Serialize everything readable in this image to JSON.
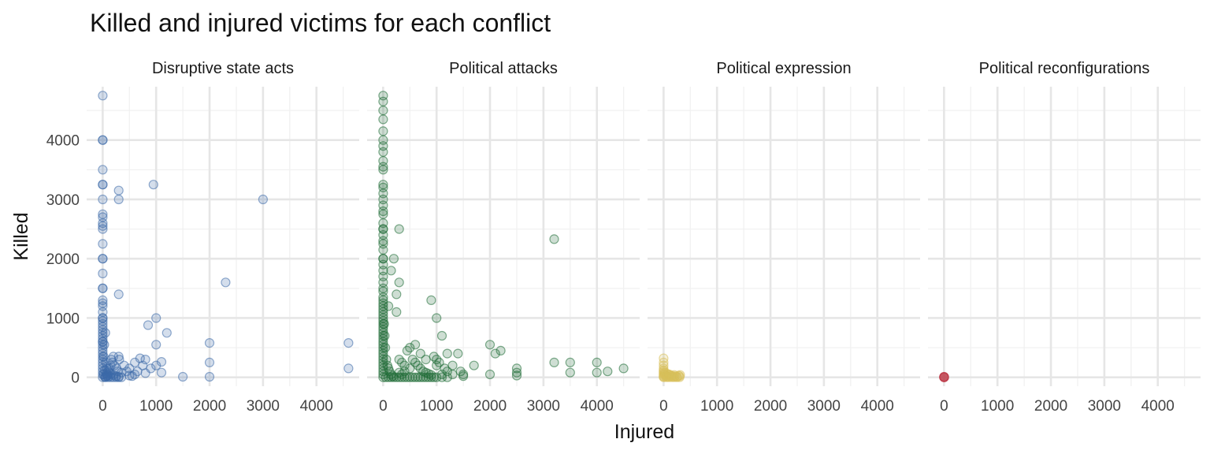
{
  "chart_data": {
    "type": "scatter",
    "title": "Killed and injured victims for each conflict",
    "xlabel": "Injured",
    "ylabel": "Killed",
    "xlim": [
      -300,
      4800
    ],
    "ylim": [
      -150,
      4900
    ],
    "x_ticks": [
      0,
      1000,
      2000,
      3000,
      4000
    ],
    "y_ticks": [
      0,
      1000,
      2000,
      3000,
      4000
    ],
    "grid": true,
    "legend": "none",
    "series": [
      {
        "name": "Disruptive state acts",
        "color": "#3d6aa8",
        "points": [
          [
            0,
            4750
          ],
          [
            0,
            4000
          ],
          [
            0,
            4000
          ],
          [
            0,
            3500
          ],
          [
            0,
            3250
          ],
          [
            0,
            3250
          ],
          [
            0,
            3000
          ],
          [
            0,
            2750
          ],
          [
            0,
            2700
          ],
          [
            0,
            2600
          ],
          [
            0,
            2550
          ],
          [
            0,
            2500
          ],
          [
            0,
            2250
          ],
          [
            0,
            2000
          ],
          [
            0,
            2000
          ],
          [
            0,
            1750
          ],
          [
            0,
            1500
          ],
          [
            0,
            1500
          ],
          [
            0,
            1300
          ],
          [
            0,
            1250
          ],
          [
            0,
            1200
          ],
          [
            0,
            1100
          ],
          [
            0,
            1000
          ],
          [
            0,
            1000
          ],
          [
            0,
            950
          ],
          [
            0,
            900
          ],
          [
            0,
            850
          ],
          [
            0,
            800
          ],
          [
            0,
            750
          ],
          [
            0,
            700
          ],
          [
            0,
            650
          ],
          [
            0,
            600
          ],
          [
            0,
            600
          ],
          [
            0,
            550
          ],
          [
            0,
            500
          ],
          [
            0,
            450
          ],
          [
            0,
            400
          ],
          [
            0,
            350
          ],
          [
            0,
            300
          ],
          [
            0,
            250
          ],
          [
            0,
            200
          ],
          [
            0,
            150
          ],
          [
            0,
            100
          ],
          [
            0,
            50
          ],
          [
            0,
            0
          ],
          [
            50,
            750
          ],
          [
            30,
            550
          ],
          [
            20,
            350
          ],
          [
            60,
            250
          ],
          [
            80,
            150
          ],
          [
            100,
            100
          ],
          [
            120,
            80
          ],
          [
            150,
            60
          ],
          [
            200,
            40
          ],
          [
            250,
            20
          ],
          [
            300,
            10
          ],
          [
            350,
            0
          ],
          [
            50,
            0
          ],
          [
            100,
            0
          ],
          [
            150,
            0
          ],
          [
            200,
            0
          ],
          [
            250,
            0
          ],
          [
            300,
            0
          ],
          [
            20,
            50
          ],
          [
            40,
            120
          ],
          [
            70,
            60
          ],
          [
            90,
            30
          ],
          [
            130,
            20
          ],
          [
            160,
            300
          ],
          [
            180,
            250
          ],
          [
            220,
            200
          ],
          [
            260,
            150
          ],
          [
            280,
            100
          ],
          [
            300,
            350
          ],
          [
            310,
            300
          ],
          [
            200,
            350
          ],
          [
            150,
            200
          ],
          [
            120,
            150
          ],
          [
            100,
            50
          ],
          [
            80,
            20
          ],
          [
            60,
            10
          ],
          [
            40,
            5
          ],
          [
            300,
            3150
          ],
          [
            300,
            3000
          ],
          [
            300,
            1400
          ],
          [
            950,
            3250
          ],
          [
            3000,
            3000
          ],
          [
            2300,
            1600
          ],
          [
            850,
            880
          ],
          [
            1000,
            1000
          ],
          [
            1200,
            750
          ],
          [
            1000,
            550
          ],
          [
            2000,
            580
          ],
          [
            4600,
            580
          ],
          [
            4600,
            150
          ],
          [
            2000,
            250
          ],
          [
            2000,
            10
          ],
          [
            1500,
            10
          ],
          [
            1100,
            260
          ],
          [
            1000,
            200
          ],
          [
            900,
            150
          ],
          [
            800,
            300
          ],
          [
            700,
            320
          ],
          [
            650,
            100
          ],
          [
            600,
            50
          ],
          [
            550,
            20
          ],
          [
            500,
            150
          ],
          [
            450,
            100
          ],
          [
            400,
            200
          ],
          [
            800,
            70
          ],
          [
            1100,
            80
          ],
          [
            750,
            200
          ],
          [
            500,
            30
          ],
          [
            600,
            250
          ],
          [
            350,
            80
          ]
        ]
      },
      {
        "name": "Political attacks",
        "color": "#1e6b35",
        "points": [
          [
            0,
            4750
          ],
          [
            0,
            4650
          ],
          [
            0,
            4500
          ],
          [
            0,
            4350
          ],
          [
            0,
            4150
          ],
          [
            0,
            4000
          ],
          [
            0,
            3900
          ],
          [
            0,
            3800
          ],
          [
            0,
            3650
          ],
          [
            0,
            3550
          ],
          [
            0,
            3500
          ],
          [
            0,
            3250
          ],
          [
            0,
            3200
          ],
          [
            0,
            3100
          ],
          [
            0,
            3000
          ],
          [
            0,
            2900
          ],
          [
            0,
            2800
          ],
          [
            0,
            2750
          ],
          [
            0,
            2600
          ],
          [
            0,
            2500
          ],
          [
            0,
            2500
          ],
          [
            0,
            2400
          ],
          [
            0,
            2300
          ],
          [
            0,
            2250
          ],
          [
            0,
            2150
          ],
          [
            0,
            2000
          ],
          [
            0,
            2000
          ],
          [
            0,
            1900
          ],
          [
            0,
            1800
          ],
          [
            0,
            1700
          ],
          [
            0,
            1600
          ],
          [
            0,
            1500
          ],
          [
            0,
            1450
          ],
          [
            0,
            1350
          ],
          [
            0,
            1300
          ],
          [
            0,
            1250
          ],
          [
            0,
            1200
          ],
          [
            0,
            1150
          ],
          [
            0,
            1100
          ],
          [
            0,
            1050
          ],
          [
            0,
            1000
          ],
          [
            0,
            950
          ],
          [
            0,
            900
          ],
          [
            0,
            850
          ],
          [
            0,
            800
          ],
          [
            0,
            750
          ],
          [
            0,
            700
          ],
          [
            0,
            650
          ],
          [
            0,
            600
          ],
          [
            0,
            550
          ],
          [
            0,
            500
          ],
          [
            0,
            450
          ],
          [
            0,
            400
          ],
          [
            0,
            350
          ],
          [
            0,
            300
          ],
          [
            0,
            250
          ],
          [
            0,
            200
          ],
          [
            0,
            150
          ],
          [
            0,
            100
          ],
          [
            0,
            50
          ],
          [
            0,
            0
          ],
          [
            20,
            900
          ],
          [
            30,
            700
          ],
          [
            40,
            500
          ],
          [
            60,
            300
          ],
          [
            80,
            200
          ],
          [
            100,
            150
          ],
          [
            120,
            100
          ],
          [
            150,
            50
          ],
          [
            180,
            20
          ],
          [
            200,
            0
          ],
          [
            250,
            0
          ],
          [
            300,
            0
          ],
          [
            350,
            0
          ],
          [
            400,
            0
          ],
          [
            450,
            0
          ],
          [
            500,
            0
          ],
          [
            550,
            0
          ],
          [
            600,
            0
          ],
          [
            650,
            0
          ],
          [
            700,
            0
          ],
          [
            750,
            0
          ],
          [
            800,
            0
          ],
          [
            850,
            0
          ],
          [
            900,
            0
          ],
          [
            950,
            0
          ],
          [
            1000,
            0
          ],
          [
            1100,
            0
          ],
          [
            1200,
            0
          ],
          [
            50,
            0
          ],
          [
            100,
            0
          ],
          [
            150,
            0
          ],
          [
            200,
            2000
          ],
          [
            300,
            2500
          ],
          [
            250,
            1400
          ],
          [
            300,
            1600
          ],
          [
            150,
            1800
          ],
          [
            100,
            1200
          ],
          [
            250,
            1100
          ],
          [
            300,
            300
          ],
          [
            350,
            250
          ],
          [
            400,
            200
          ],
          [
            450,
            450
          ],
          [
            500,
            500
          ],
          [
            550,
            300
          ],
          [
            600,
            250
          ],
          [
            650,
            200
          ],
          [
            700,
            150
          ],
          [
            750,
            100
          ],
          [
            800,
            80
          ],
          [
            850,
            60
          ],
          [
            900,
            40
          ],
          [
            950,
            350
          ],
          [
            1000,
            300
          ],
          [
            1050,
            250
          ],
          [
            1100,
            700
          ],
          [
            1000,
            1000
          ],
          [
            900,
            1300
          ],
          [
            1150,
            150
          ],
          [
            1200,
            400
          ],
          [
            1300,
            200
          ],
          [
            1400,
            400
          ],
          [
            1450,
            100
          ],
          [
            1500,
            50
          ],
          [
            2000,
            550
          ],
          [
            2100,
            400
          ],
          [
            2200,
            450
          ],
          [
            2000,
            50
          ],
          [
            2500,
            150
          ],
          [
            2500,
            80
          ],
          [
            3200,
            2330
          ],
          [
            3200,
            250
          ],
          [
            3500,
            250
          ],
          [
            3500,
            80
          ],
          [
            4000,
            250
          ],
          [
            4000,
            80
          ],
          [
            4200,
            100
          ],
          [
            4500,
            150
          ],
          [
            2500,
            30
          ],
          [
            1500,
            20
          ],
          [
            1700,
            200
          ],
          [
            1300,
            50
          ],
          [
            600,
            550
          ],
          [
            500,
            150
          ],
          [
            400,
            100
          ],
          [
            350,
            50
          ],
          [
            300,
            80
          ],
          [
            700,
            400
          ],
          [
            800,
            300
          ],
          [
            1000,
            200
          ],
          [
            1100,
            50
          ],
          [
            1200,
            100
          ]
        ]
      },
      {
        "name": "Political expression",
        "color": "#d8c05a",
        "points": [
          [
            0,
            320
          ],
          [
            0,
            250
          ],
          [
            0,
            200
          ],
          [
            0,
            150
          ],
          [
            0,
            120
          ],
          [
            0,
            100
          ],
          [
            0,
            80
          ],
          [
            0,
            60
          ],
          [
            0,
            40
          ],
          [
            0,
            20
          ],
          [
            0,
            10
          ],
          [
            0,
            0
          ],
          [
            20,
            50
          ],
          [
            40,
            30
          ],
          [
            60,
            20
          ],
          [
            80,
            10
          ],
          [
            100,
            40
          ],
          [
            120,
            30
          ],
          [
            150,
            20
          ],
          [
            180,
            10
          ],
          [
            200,
            40
          ],
          [
            220,
            20
          ],
          [
            250,
            10
          ],
          [
            280,
            30
          ],
          [
            300,
            20
          ],
          [
            310,
            40
          ],
          [
            50,
            0
          ],
          [
            100,
            0
          ],
          [
            150,
            0
          ],
          [
            200,
            0
          ],
          [
            250,
            0
          ],
          [
            300,
            0
          ],
          [
            30,
            80
          ],
          [
            70,
            60
          ],
          [
            110,
            50
          ],
          [
            160,
            30
          ]
        ]
      },
      {
        "name": "Political reconfigurations",
        "color": "#c0404f",
        "points": [
          [
            0,
            0
          ],
          [
            0,
            5
          ],
          [
            0,
            10
          ],
          [
            0,
            0
          ],
          [
            0,
            3
          ],
          [
            5,
            0
          ],
          [
            2,
            8
          ],
          [
            0,
            0
          ]
        ]
      }
    ]
  }
}
